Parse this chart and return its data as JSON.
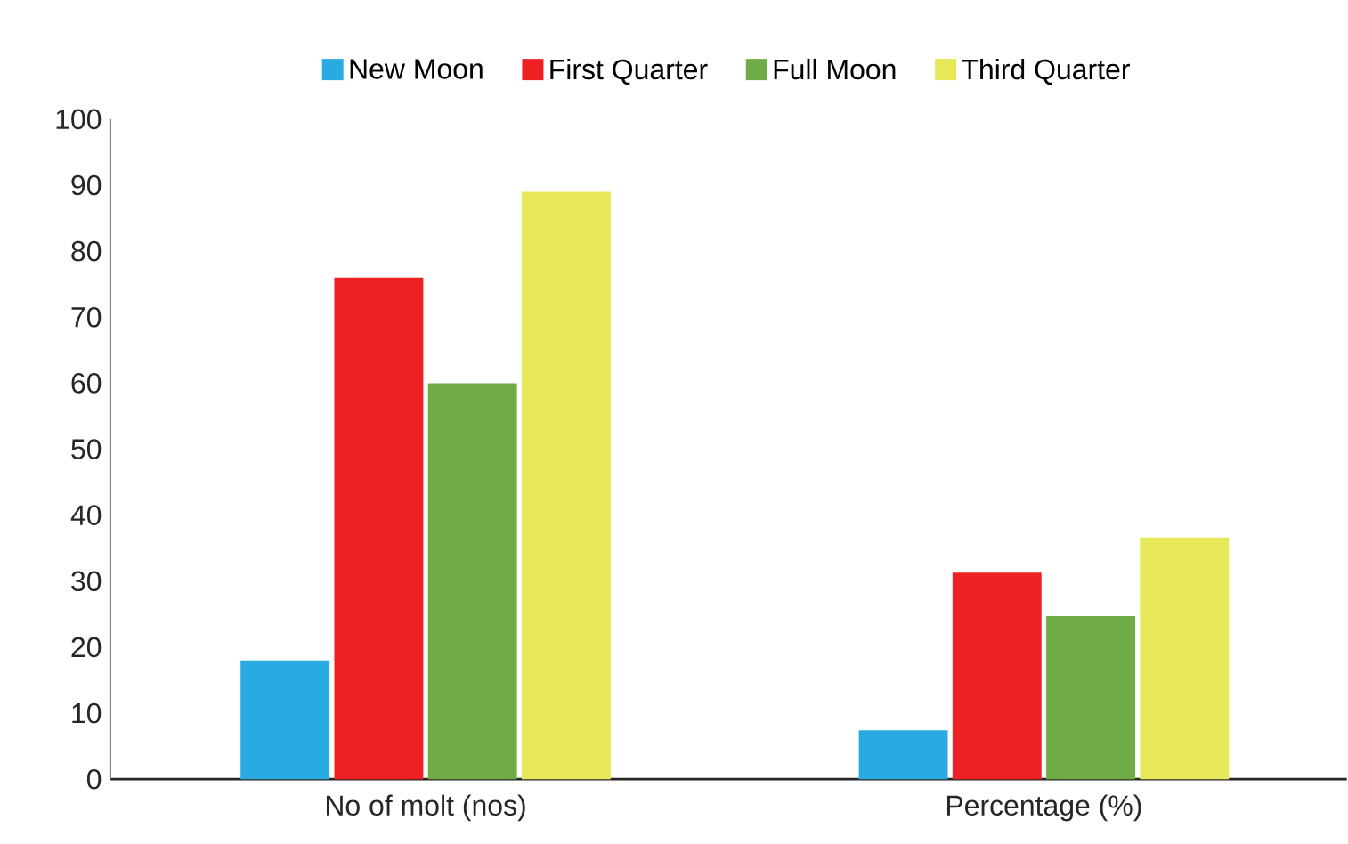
{
  "chart_data": {
    "type": "bar",
    "categories": [
      "No of molt (nos)",
      "Percentage (%)"
    ],
    "series": [
      {
        "name": "New Moon",
        "color": "#29abe2",
        "values": [
          18,
          7.4
        ]
      },
      {
        "name": "First Quarter",
        "color": "#ed2024",
        "values": [
          76,
          31.3
        ]
      },
      {
        "name": "Full Moon",
        "color": "#70ac45",
        "values": [
          60,
          24.7
        ]
      },
      {
        "name": "Third Quarter",
        "color": "#e6e85a",
        "values": [
          89,
          36.6
        ]
      }
    ],
    "ylim": [
      0,
      100
    ],
    "yticks": [
      0,
      10,
      20,
      30,
      40,
      50,
      60,
      70,
      80,
      90,
      100
    ],
    "legend": "top"
  }
}
